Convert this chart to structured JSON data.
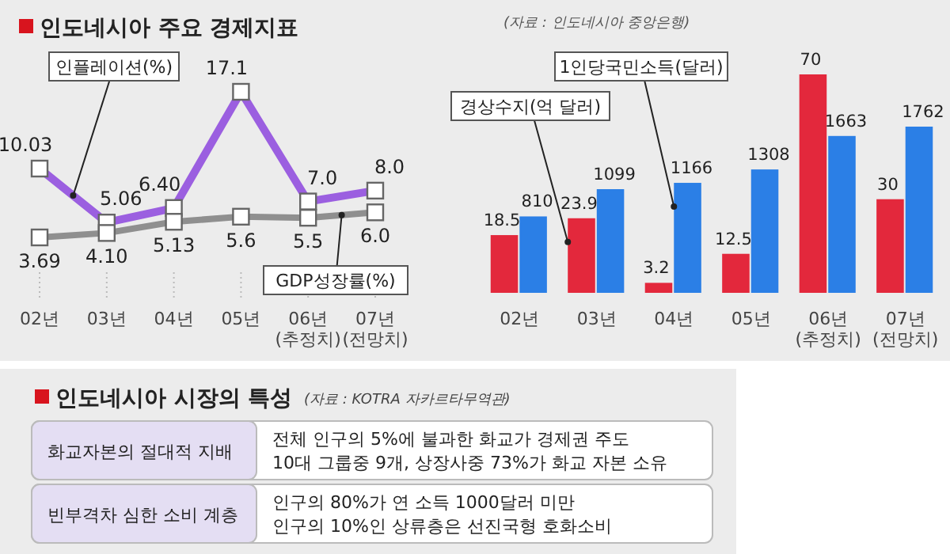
{
  "chart_data": [
    {
      "type": "line",
      "title": "인도네시아 주요 경제지표",
      "categories": [
        "02년",
        "03년",
        "04년",
        "05년",
        "06년\n(추정치)",
        "07년\n(전망치)"
      ],
      "series": [
        {
          "name": "인플레이션(%)",
          "color": "#9b5fe0",
          "values": [
            10.03,
            5.06,
            6.4,
            17.1,
            7.0,
            8.0
          ],
          "value_labels": [
            "10.03",
            "5.06",
            "6.40",
            "17.1",
            "7.0",
            "8.0"
          ]
        },
        {
          "name": "GDP성장률(%)",
          "color": "#8f8f8f",
          "values": [
            3.69,
            4.1,
            5.13,
            5.6,
            5.5,
            6.0
          ],
          "value_labels": [
            "3.69",
            "4.10",
            "5.13",
            "5.6",
            "5.5",
            "6.0"
          ]
        }
      ],
      "tick_labels": "x",
      "marker": "square"
    },
    {
      "type": "bar",
      "annotations": [
        "(자료 : 인도네시아 중앙은행)"
      ],
      "categories": [
        "02년",
        "03년",
        "04년",
        "05년",
        "06년\n(추정치)",
        "07년\n(전망치)"
      ],
      "series": [
        {
          "name": "경상수지(억 달러)",
          "color": "#e3283c",
          "values": [
            18.5,
            23.9,
            3.2,
            12.5,
            70,
            30
          ]
        },
        {
          "name": "1인당국민소득(달러)",
          "color": "#2b7fe6",
          "values": [
            810,
            1099,
            1166,
            1308,
            1663,
            1762
          ],
          "axis": "y2"
        }
      ],
      "tick_labels": "x",
      "data_labels": true
    },
    {
      "type": "other",
      "title": "인도네시아 시장의 특성",
      "annotations": [
        "(자료 : KOTRA 자카르타무역관)",
        "화교자본의 절대적 지배",
        "전체 인구의  5%에 불과한 화교가 경제권 주도",
        "10대 그룹중 9개, 상장사중 73%가 화교 자본 소유",
        "빈부격차 심한 소비 계층",
        "인구의 80%가 연 소득 1000달러 미만",
        "인구의 10%인 상류층은 선진국형 호화소비"
      ]
    }
  ]
}
